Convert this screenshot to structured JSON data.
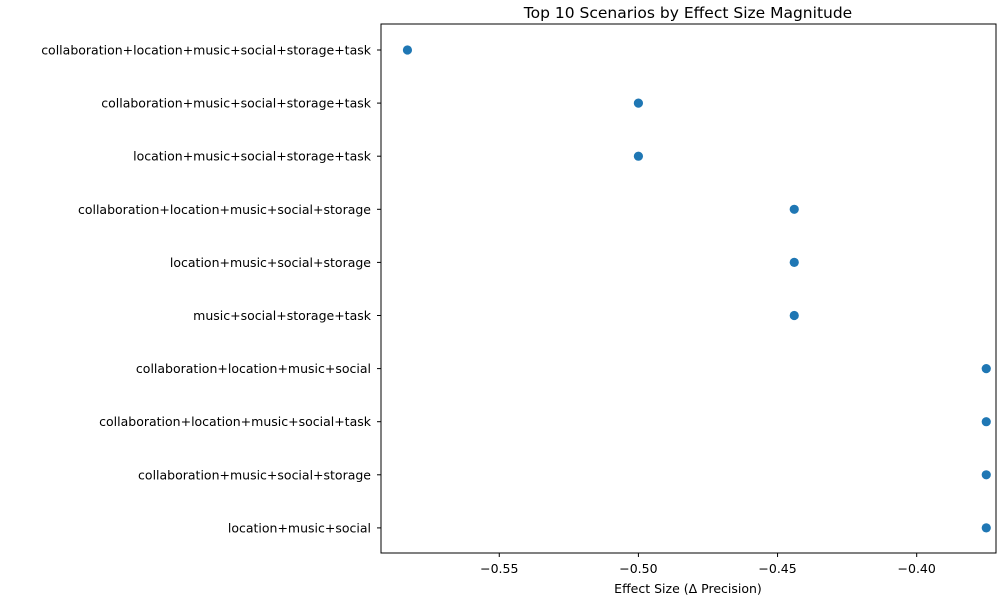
{
  "chart_data": {
    "type": "scatter",
    "title": "Top 10 Scenarios by Effect Size Magnitude",
    "xlabel": "Effect Size (Δ Precision)",
    "ylabel": "",
    "xlim": [
      -0.5925,
      -0.3715
    ],
    "xticks": [
      -0.55,
      -0.5,
      -0.45,
      -0.4
    ],
    "xtick_labels": [
      "−0.55",
      "−0.50",
      "−0.45",
      "−0.40"
    ],
    "grid": false,
    "marker_color": "#1f77b4",
    "categories": [
      "collaboration+location+music+social+storage+task",
      "collaboration+music+social+storage+task",
      "location+music+social+storage+task",
      "collaboration+location+music+social+storage",
      "location+music+social+storage",
      "music+social+storage+task",
      "collaboration+location+music+social",
      "collaboration+location+music+social+task",
      "collaboration+music+social+storage",
      "location+music+social"
    ],
    "values": [
      -0.583,
      -0.5,
      -0.5,
      -0.444,
      -0.444,
      -0.444,
      -0.375,
      -0.375,
      -0.375,
      -0.375
    ]
  }
}
